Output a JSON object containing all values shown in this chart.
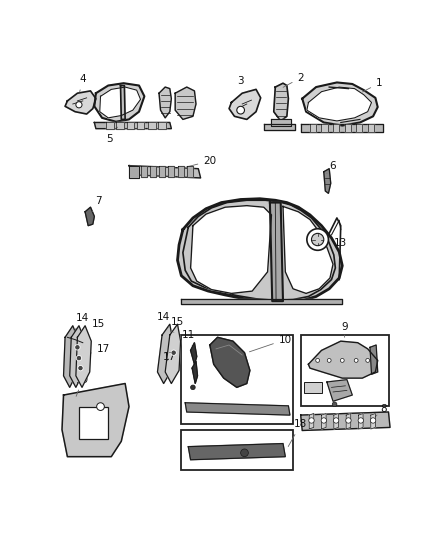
{
  "bg_color": "#ffffff",
  "fig_width": 4.38,
  "fig_height": 5.33,
  "dpi": 100,
  "lc": "#1a1a1a",
  "lc_thin": "#444444",
  "lc_med": "#222222",
  "gray_fill": "#d0d0d0",
  "gray_dark": "#555555",
  "gray_light": "#e8e8e8",
  "label_fs": 7.5
}
